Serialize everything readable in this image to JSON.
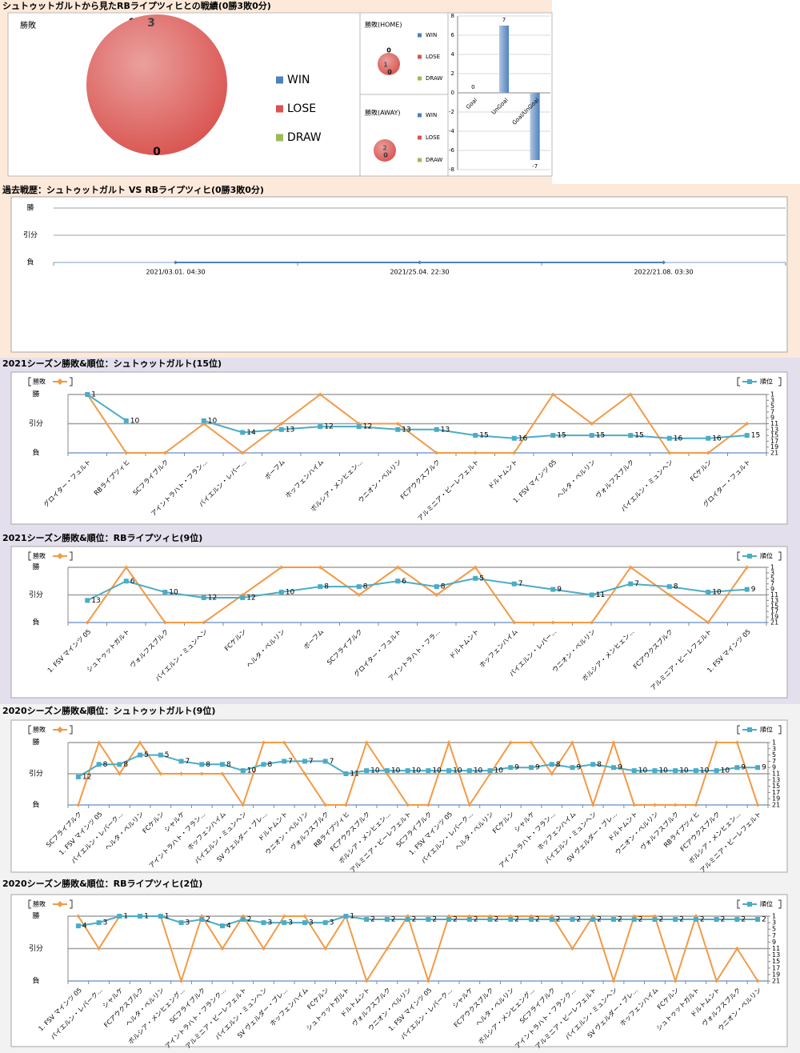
{
  "headings": [
    "シュトゥットガルトから見たRBライプツィヒとの戦績(0勝3敗0分)",
    "過去戦歴：シュトゥットガルト VS RBライプツィヒ(0勝3敗0分)",
    "2021シーズン勝敗&順位：シュトゥットガルト(15位)",
    "2021シーズン勝敗&順位：RBライプツィヒ(9位)",
    "2020シーズン勝敗&順位：シュトゥットガルト(9位)",
    "2020シーズン勝敗&順位：RBライプツィヒ(2位)"
  ],
  "chart_data": [
    {
      "type": "pie",
      "title": "勝敗",
      "categories": [
        "WIN",
        "LOSE",
        "DRAW"
      ],
      "values": [
        0,
        3,
        0
      ],
      "colors": [
        "#4f81bd",
        "#d9534f",
        "#9bbb59"
      ]
    },
    {
      "type": "pie",
      "title": "勝敗(HOME)",
      "categories": [
        "WIN",
        "LOSE",
        "DRAW"
      ],
      "values": [
        0,
        1,
        0
      ],
      "colors": [
        "#4f81bd",
        "#d9534f",
        "#9bbb59"
      ]
    },
    {
      "type": "pie",
      "title": "勝敗(AWAY)",
      "categories": [
        "WIN",
        "LOSE",
        "DRAW"
      ],
      "values": [
        0,
        2,
        0
      ],
      "colors": [
        "#4f81bd",
        "#d9534f",
        "#9bbb59"
      ]
    },
    {
      "type": "bar",
      "categories": [
        "Goal",
        "UnGoal",
        "Goal/UnGoal"
      ],
      "values": [
        0,
        7,
        -7
      ],
      "color": "#4f81bd",
      "ylim": [
        -8,
        8
      ],
      "yticks": [
        -8,
        -6,
        -4,
        -2,
        0,
        2,
        4,
        6,
        8
      ]
    },
    {
      "type": "line",
      "categories": [
        "2021/03.01. 04:30",
        "2021/25.04. 22:30",
        "2022/21.08. 03:30"
      ],
      "ylim": [
        -1,
        1
      ],
      "yticks": [
        {
          "value": 1,
          "label": "勝"
        },
        {
          "value": 0,
          "label": "引分"
        },
        {
          "value": -1,
          "label": "負"
        }
      ],
      "series": [
        {
          "color": "#4f81bd",
          "values": [
            -1,
            -1,
            -1
          ]
        }
      ]
    },
    {
      "type": "line",
      "categories": [
        "グロイター・フュルト",
        "RBライプツィヒ",
        "SCフライブルク",
        "アイントラハト・フラン...",
        "バイエルン・レバー...",
        "ボーフム",
        "ホッフェンハイム",
        "ボルシア・メンヒェン...",
        "ウニオン・ベルリン",
        "FCアウクスブルク",
        "アルミニア・ビーレフェルト",
        "ドルトムント",
        "1. FSV マインツ 05",
        "ヘルタ・ベルリン",
        "ヴォルフスブルク",
        "バイエルン・ミュンヘン",
        "FCケルン",
        "グロイター・フュルト"
      ],
      "ylim": [
        -1,
        1
      ],
      "yticks": [
        {
          "value": 1,
          "label": "勝"
        },
        {
          "value": 0,
          "label": "引分"
        },
        {
          "value": -1,
          "label": "負"
        }
      ],
      "y2lim": [
        21,
        1
      ],
      "y2ticks": [
        1,
        3,
        5,
        7,
        9,
        11,
        13,
        15,
        17,
        19,
        21
      ],
      "series": [
        {
          "name": "勝敗",
          "color": "#f39a45",
          "values": [
            1,
            -1,
            -1,
            0,
            -1,
            0,
            1,
            0,
            0,
            -1,
            -1,
            -1,
            1,
            0,
            1,
            -1,
            -1,
            0
          ]
        },
        {
          "name": "順位",
          "color": "#4bacc6",
          "axis": "y2",
          "data_labels": true,
          "values": [
            1,
            10,
            null,
            10,
            14,
            13,
            12,
            12,
            13,
            13,
            15,
            16,
            15,
            15,
            15,
            16,
            16,
            15
          ]
        }
      ]
    },
    {
      "type": "line",
      "categories": [
        "1. FSV マインツ 05",
        "シュトゥットガルト",
        "ヴォルフスブルク",
        "バイエルン・ミュンヘン",
        "FCケルン",
        "ヘルタ・ベルリン",
        "ボーフム",
        "SCフライブルク",
        "グロイター・フュルト",
        "アイントラハト・フラ...",
        "ドルトムント",
        "ホッフェンハイム",
        "バイエルン・レバー...",
        "ウニオン・ベルリン",
        "ボルシア・メンヒェン...",
        "FCアウクスブルク",
        "アルミニア・ビーレフェルト",
        "1. FSV マインツ 05"
      ],
      "ylim": [
        -1,
        1
      ],
      "yticks": [
        {
          "value": 1,
          "label": "勝"
        },
        {
          "value": 0,
          "label": "引分"
        },
        {
          "value": -1,
          "label": "負"
        }
      ],
      "y2lim": [
        21,
        1
      ],
      "y2ticks": [
        1,
        3,
        5,
        7,
        9,
        11,
        13,
        15,
        17,
        19,
        21
      ],
      "series": [
        {
          "name": "勝敗",
          "color": "#f39a45",
          "values": [
            -1,
            1,
            -1,
            -1,
            0,
            1,
            1,
            0,
            1,
            0,
            1,
            -1,
            -1,
            -1,
            1,
            0,
            -1,
            1
          ]
        },
        {
          "name": "順位",
          "color": "#4bacc6",
          "axis": "y2",
          "data_labels": true,
          "values": [
            13,
            6,
            10,
            12,
            12,
            10,
            8,
            8,
            6,
            8,
            5,
            7,
            9,
            11,
            7,
            8,
            10,
            9
          ]
        }
      ]
    },
    {
      "type": "line",
      "categories": [
        "SCフライブルク",
        "1. FSV マインツ 05",
        "バイエルン・レバーク...",
        "ヘルタ・ベルリン",
        "FCケルン",
        "シャルケ",
        "アイントラハト・フラン...",
        "ホッフェンハイム",
        "バイエルン・ミュンヘン",
        "SV ヴェルダー・ブレ...",
        "ドルトムント",
        "ウニオン・ベルリン",
        "ヴォルフスブルク",
        "RBライプツィヒ",
        "FCアウクスブルク",
        "ボルシア・メンヒェン...",
        "アルミニア・ビーレフェルト",
        "SCフライブルク",
        "1. FSV マインツ 05",
        "バイエルン・レバーク...",
        "ヘルタ・ベルリン",
        "FCケルン",
        "シャルケ",
        "アイントラハト・フラン...",
        "ホッフェンハイム",
        "バイエルン・ミュンヘン",
        "SV ヴェルダー・ブレ...",
        "ドルトムント",
        "ウニオン・ベルリン",
        "ヴォルフスブルク",
        "RBライプツィヒ",
        "FCアウクスブルク",
        "ボルシア・メンヒェン...",
        "アルミニア・ビーレフェルト"
      ],
      "ylim": [
        -1,
        1
      ],
      "yticks": [
        {
          "value": 1,
          "label": "勝"
        },
        {
          "value": 0,
          "label": "引分"
        },
        {
          "value": -1,
          "label": "負"
        }
      ],
      "y2lim": [
        21,
        1
      ],
      "y2ticks": [
        1,
        3,
        5,
        7,
        9,
        11,
        13,
        15,
        17,
        19,
        21
      ],
      "series": [
        {
          "name": "勝敗",
          "color": "#f39a45",
          "values": [
            -1,
            1,
            0,
            1,
            0,
            0,
            0,
            0,
            -1,
            1,
            1,
            0,
            -1,
            -1,
            1,
            0,
            -1,
            -1,
            1,
            -1,
            0,
            1,
            1,
            0,
            1,
            -1,
            1,
            -1,
            -1,
            -1,
            -1,
            1,
            1,
            -1
          ]
        },
        {
          "name": "順位",
          "color": "#4bacc6",
          "axis": "y2",
          "data_labels": true,
          "values": [
            12,
            8,
            8,
            5,
            5,
            7,
            8,
            8,
            10,
            8,
            7,
            7,
            7,
            11,
            10,
            10,
            10,
            10,
            10,
            10,
            10,
            9,
            9,
            8,
            9,
            8,
            9,
            10,
            10,
            10,
            10,
            10,
            9,
            9
          ]
        }
      ]
    },
    {
      "type": "line",
      "categories": [
        "1. FSV マインツ 05",
        "バイエルン・レバーク...",
        "シャルケ",
        "FCアウクスブルク",
        "ヘルタ・ベルリン",
        "ボルシア・メンヒェング...",
        "SCフライブルク",
        "アイントラハト・フランク...",
        "アルミニア・ビーレフェルト",
        "バイエルン・ミュンヘン",
        "SV ヴェルダー・ブレ...",
        "ホッフェンハイム",
        "FCケルン",
        "シュトゥットガルト",
        "ドルトムント",
        "ヴォルフスブルク",
        "ウニオン・ベルリン",
        "1. FSV マインツ 05",
        "バイエルン・レバーク...",
        "シャルケ",
        "FCアウクスブルク",
        "ヘルタ・ベルリン",
        "ボルシア・メンヒェング...",
        "SCフライブルク",
        "アイントラハト・フランク...",
        "アルミニア・ビーレフェルト",
        "バイエルン・ミュンヘン",
        "SV ヴェルダー・ブレ...",
        "ホッフェンハイム",
        "FCケルン",
        "シュトゥットガルト",
        "ドルトムント",
        "ヴォルフスブルク",
        "ウニオン・ベルリン"
      ],
      "ylim": [
        -1,
        1
      ],
      "yticks": [
        {
          "value": 1,
          "label": "勝"
        },
        {
          "value": 0,
          "label": "引分"
        },
        {
          "value": -1,
          "label": "負"
        }
      ],
      "y2lim": [
        21,
        1
      ],
      "y2ticks": [
        1,
        3,
        5,
        7,
        9,
        11,
        13,
        15,
        17,
        19,
        21
      ],
      "series": [
        {
          "name": "勝敗",
          "color": "#f39a45",
          "values": [
            1,
            0,
            1,
            1,
            1,
            -1,
            1,
            0,
            1,
            0,
            1,
            1,
            0,
            1,
            -1,
            0,
            1,
            -1,
            1,
            1,
            1,
            1,
            1,
            1,
            0,
            1,
            -1,
            1,
            1,
            -1,
            1,
            -1,
            0,
            -1
          ]
        },
        {
          "name": "順位",
          "color": "#4bacc6",
          "axis": "y2",
          "data_labels": true,
          "values": [
            4,
            3,
            1,
            1,
            1,
            3,
            2,
            4,
            2,
            3,
            3,
            3,
            3,
            1,
            2,
            2,
            2,
            2,
            2,
            2,
            2,
            2,
            2,
            2,
            2,
            2,
            2,
            2,
            2,
            2,
            2,
            2,
            2,
            2
          ]
        }
      ]
    }
  ]
}
